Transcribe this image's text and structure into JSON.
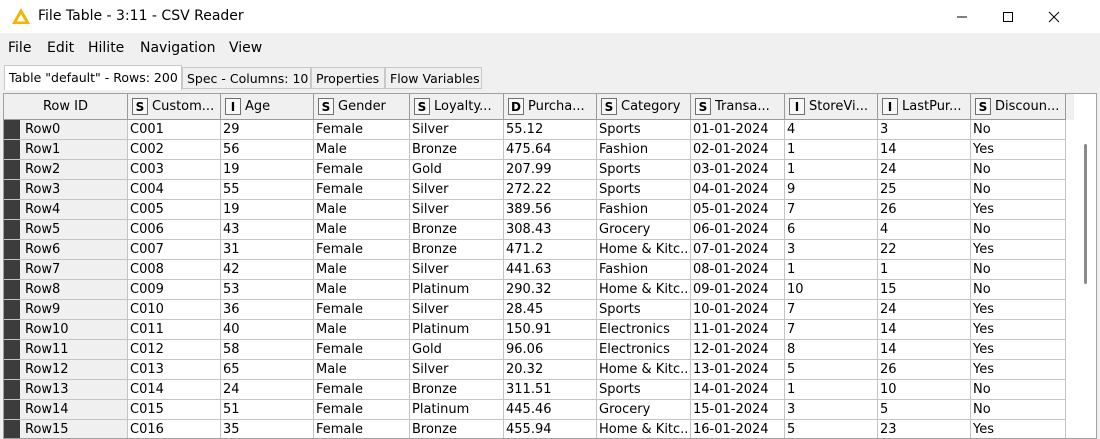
{
  "window": {
    "title": "File Table - 3:11 - CSV Reader",
    "accent_color": "#f5b400"
  },
  "menu": [
    "File",
    "Edit",
    "Hilite",
    "Navigation",
    "View"
  ],
  "tabs": [
    {
      "label": "Table \"default\" - Rows: 200",
      "active": true
    },
    {
      "label": "Spec - Columns: 10",
      "active": false
    },
    {
      "label": "Properties",
      "active": false
    },
    {
      "label": "Flow Variables",
      "active": false
    }
  ],
  "table": {
    "row_id_header": "Row ID",
    "columns": [
      {
        "type": "S",
        "label": "Custom..."
      },
      {
        "type": "I",
        "label": "Age"
      },
      {
        "type": "S",
        "label": "Gender"
      },
      {
        "type": "S",
        "label": "Loyalty..."
      },
      {
        "type": "D",
        "label": "Purcha..."
      },
      {
        "type": "S",
        "label": "Category"
      },
      {
        "type": "S",
        "label": "Transa..."
      },
      {
        "type": "I",
        "label": "StoreVi..."
      },
      {
        "type": "I",
        "label": "LastPur..."
      },
      {
        "type": "S",
        "label": "Discoun..."
      }
    ],
    "rows": [
      {
        "id": "Row0",
        "cells": [
          "C001",
          "29",
          "Female",
          "Silver",
          "55.12",
          "Sports",
          "01-01-2024",
          "4",
          "3",
          "No"
        ]
      },
      {
        "id": "Row1",
        "cells": [
          "C002",
          "56",
          "Male",
          "Bronze",
          "475.64",
          "Fashion",
          "02-01-2024",
          "1",
          "14",
          "Yes"
        ]
      },
      {
        "id": "Row2",
        "cells": [
          "C003",
          "19",
          "Female",
          "Gold",
          "207.99",
          "Sports",
          "03-01-2024",
          "1",
          "24",
          "No"
        ]
      },
      {
        "id": "Row3",
        "cells": [
          "C004",
          "55",
          "Female",
          "Silver",
          "272.22",
          "Sports",
          "04-01-2024",
          "9",
          "25",
          "No"
        ]
      },
      {
        "id": "Row4",
        "cells": [
          "C005",
          "19",
          "Male",
          "Silver",
          "389.56",
          "Fashion",
          "05-01-2024",
          "7",
          "26",
          "Yes"
        ]
      },
      {
        "id": "Row5",
        "cells": [
          "C006",
          "43",
          "Male",
          "Bronze",
          "308.43",
          "Grocery",
          "06-01-2024",
          "6",
          "4",
          "No"
        ]
      },
      {
        "id": "Row6",
        "cells": [
          "C007",
          "31",
          "Female",
          "Bronze",
          "471.2",
          "Home & Kitc...",
          "07-01-2024",
          "3",
          "22",
          "Yes"
        ]
      },
      {
        "id": "Row7",
        "cells": [
          "C008",
          "42",
          "Male",
          "Silver",
          "441.63",
          "Fashion",
          "08-01-2024",
          "1",
          "1",
          "No"
        ]
      },
      {
        "id": "Row8",
        "cells": [
          "C009",
          "53",
          "Male",
          "Platinum",
          "290.32",
          "Home & Kitc...",
          "09-01-2024",
          "10",
          "15",
          "No"
        ]
      },
      {
        "id": "Row9",
        "cells": [
          "C010",
          "36",
          "Female",
          "Silver",
          "28.45",
          "Sports",
          "10-01-2024",
          "7",
          "24",
          "Yes"
        ]
      },
      {
        "id": "Row10",
        "cells": [
          "C011",
          "40",
          "Male",
          "Platinum",
          "150.91",
          "Electronics",
          "11-01-2024",
          "7",
          "14",
          "Yes"
        ]
      },
      {
        "id": "Row11",
        "cells": [
          "C012",
          "58",
          "Female",
          "Gold",
          "96.06",
          "Electronics",
          "12-01-2024",
          "8",
          "14",
          "Yes"
        ]
      },
      {
        "id": "Row12",
        "cells": [
          "C013",
          "65",
          "Male",
          "Silver",
          "20.32",
          "Home & Kitc...",
          "13-01-2024",
          "5",
          "26",
          "Yes"
        ]
      },
      {
        "id": "Row13",
        "cells": [
          "C014",
          "24",
          "Female",
          "Bronze",
          "311.51",
          "Sports",
          "14-01-2024",
          "1",
          "10",
          "No"
        ]
      },
      {
        "id": "Row14",
        "cells": [
          "C015",
          "51",
          "Female",
          "Platinum",
          "445.46",
          "Grocery",
          "15-01-2024",
          "3",
          "5",
          "No"
        ]
      },
      {
        "id": "Row15",
        "cells": [
          "C016",
          "35",
          "Female",
          "Bronze",
          "455.94",
          "Home & Kitc...",
          "16-01-2024",
          "5",
          "23",
          "Yes"
        ]
      }
    ]
  }
}
